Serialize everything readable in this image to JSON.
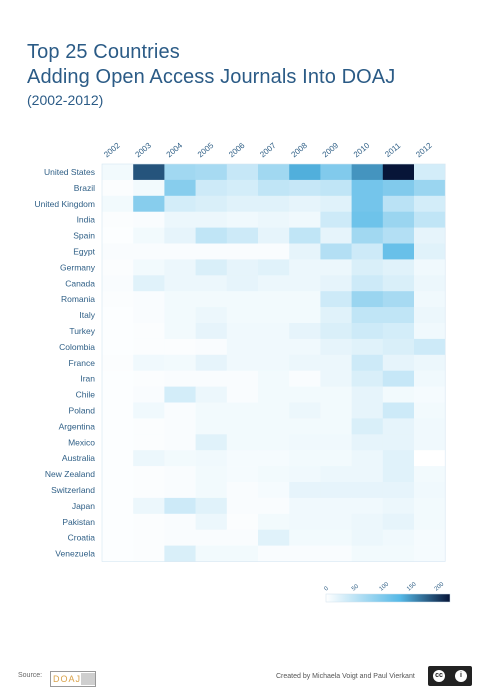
{
  "chart_data": {
    "type": "heatmap",
    "title_line1": "Top 25 Countries",
    "title_line2": "Adding Open Access Journals Into DOAJ",
    "subtitle": "(2002-2012)",
    "x_categories": [
      "2002",
      "2003",
      "2004",
      "2005",
      "2006",
      "2007",
      "2008",
      "2009",
      "2010",
      "2011",
      "2012"
    ],
    "y_categories": [
      "United States",
      "Brazil",
      "United Kingdom",
      "India",
      "Spain",
      "Egypt",
      "Germany",
      "Canada",
      "Romania",
      "Italy",
      "Turkey",
      "Colombia",
      "France",
      "Iran",
      "Chile",
      "Poland",
      "Argentina",
      "Mexico",
      "Australia",
      "New Zealand",
      "Switzerland",
      "Japan",
      "Pakistan",
      "Croatia",
      "Venezuela"
    ],
    "values": [
      [
        10,
        190,
        75,
        70,
        45,
        75,
        140,
        100,
        155,
        225,
        35
      ],
      [
        3,
        10,
        95,
        40,
        35,
        50,
        45,
        50,
        110,
        100,
        80
      ],
      [
        10,
        95,
        35,
        30,
        25,
        25,
        20,
        25,
        110,
        55,
        35
      ],
      [
        3,
        5,
        15,
        15,
        12,
        15,
        12,
        40,
        115,
        80,
        50
      ],
      [
        2,
        10,
        20,
        50,
        40,
        20,
        50,
        20,
        75,
        60,
        20
      ],
      [
        5,
        5,
        5,
        5,
        5,
        5,
        20,
        60,
        40,
        120,
        25
      ],
      [
        3,
        10,
        15,
        30,
        20,
        25,
        15,
        15,
        30,
        25,
        12
      ],
      [
        5,
        25,
        15,
        15,
        20,
        15,
        15,
        20,
        40,
        30,
        15
      ],
      [
        3,
        5,
        10,
        10,
        10,
        10,
        10,
        40,
        80,
        70,
        12
      ],
      [
        2,
        5,
        10,
        15,
        10,
        10,
        10,
        25,
        50,
        50,
        15
      ],
      [
        2,
        3,
        10,
        20,
        12,
        12,
        20,
        30,
        40,
        35,
        12
      ],
      [
        2,
        3,
        3,
        5,
        12,
        12,
        12,
        20,
        25,
        30,
        40
      ],
      [
        3,
        12,
        10,
        20,
        12,
        12,
        15,
        15,
        40,
        20,
        15
      ],
      [
        2,
        3,
        5,
        5,
        5,
        10,
        5,
        15,
        30,
        45,
        12
      ],
      [
        2,
        5,
        35,
        15,
        5,
        10,
        10,
        10,
        20,
        10,
        8
      ],
      [
        2,
        12,
        5,
        10,
        10,
        10,
        15,
        10,
        20,
        40,
        10
      ],
      [
        2,
        3,
        5,
        10,
        10,
        10,
        10,
        10,
        30,
        20,
        12
      ],
      [
        2,
        3,
        5,
        25,
        10,
        10,
        12,
        12,
        20,
        20,
        12
      ],
      [
        2,
        15,
        10,
        12,
        8,
        8,
        10,
        10,
        15,
        25,
        0
      ],
      [
        2,
        3,
        5,
        10,
        8,
        10,
        12,
        15,
        15,
        25,
        10
      ],
      [
        2,
        3,
        5,
        10,
        5,
        8,
        20,
        20,
        20,
        20,
        12
      ],
      [
        2,
        15,
        40,
        25,
        5,
        5,
        12,
        12,
        12,
        15,
        10
      ],
      [
        2,
        3,
        5,
        15,
        3,
        10,
        12,
        12,
        15,
        20,
        10
      ],
      [
        2,
        3,
        5,
        5,
        5,
        25,
        10,
        10,
        15,
        12,
        8
      ],
      [
        2,
        3,
        30,
        10,
        10,
        5,
        5,
        5,
        10,
        10,
        8
      ]
    ],
    "colorbar_ticks": [
      0,
      50,
      100,
      150,
      200
    ],
    "colorbar_range": [
      0,
      225
    ],
    "colors": {
      "low": "#ffffff",
      "mid": "#55b8e6",
      "high": "#071538"
    },
    "grid": false
  },
  "footer": {
    "source_label": "Source:",
    "credit": "Created by Michaela Voigt and Paul Vierkant"
  },
  "logo": {
    "text": "DOAJ"
  },
  "license": {
    "icon": "creative-commons-by-icon"
  }
}
